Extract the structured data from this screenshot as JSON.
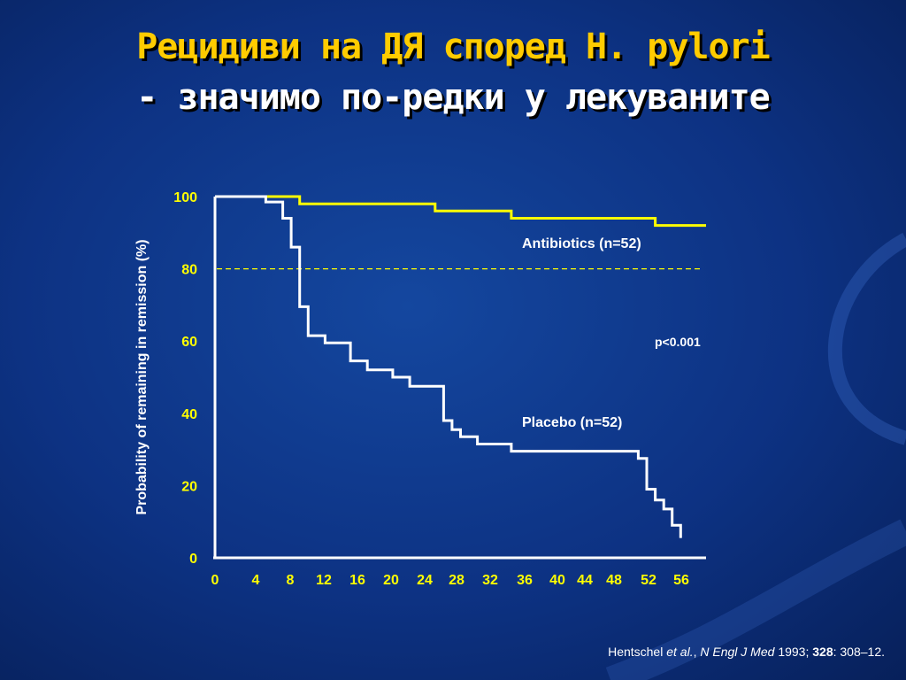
{
  "slide": {
    "title_line1": "Рецидиви на ДЯ според H. pylori",
    "title_line2": "- значимо по-редки у лекуваните"
  },
  "citation": {
    "authors": "Hentschel",
    "etal": "et al.",
    "journal": "N Engl J Med",
    "year": "1993;",
    "volume": "328",
    "pages": ": 308–12."
  },
  "colors": {
    "antibiotics": "#ffff00",
    "placebo": "#ffffff",
    "tick_labels": "#ffff00",
    "reference_line": "#ffff00"
  },
  "chart_data": {
    "type": "line",
    "step": true,
    "ylabel": "Probability of remaining in remission (%)",
    "xlabel": "",
    "xlim": [
      0,
      58
    ],
    "ylim": [
      0,
      100
    ],
    "x_ticks": [
      0,
      4,
      8,
      12,
      16,
      20,
      24,
      28,
      32,
      36,
      40,
      44,
      48,
      52,
      56
    ],
    "y_ticks": [
      0,
      20,
      40,
      60,
      80,
      100
    ],
    "reference_line": {
      "y": 80,
      "style": "dashed"
    },
    "series": [
      {
        "name": "Antibiotics (n=52)",
        "points": [
          [
            0,
            100
          ],
          [
            6,
            100
          ],
          [
            10,
            100
          ],
          [
            10,
            98
          ],
          [
            26,
            98
          ],
          [
            26,
            96
          ],
          [
            35,
            96
          ],
          [
            35,
            94
          ],
          [
            52,
            94
          ],
          [
            52,
            92
          ],
          [
            58,
            92
          ]
        ]
      },
      {
        "name": "Placebo (n=52)",
        "points": [
          [
            0,
            100
          ],
          [
            6,
            100
          ],
          [
            6,
            98.5
          ],
          [
            8,
            98.5
          ],
          [
            8,
            94
          ],
          [
            9,
            94
          ],
          [
            9,
            86
          ],
          [
            10,
            86
          ],
          [
            10,
            69.5
          ],
          [
            11,
            69.5
          ],
          [
            11,
            61.5
          ],
          [
            13,
            61.5
          ],
          [
            13,
            59.5
          ],
          [
            16,
            59.5
          ],
          [
            16,
            54.5
          ],
          [
            18,
            54.5
          ],
          [
            18,
            52
          ],
          [
            21,
            52
          ],
          [
            21,
            50
          ],
          [
            23,
            50
          ],
          [
            23,
            47.5
          ],
          [
            27,
            47.5
          ],
          [
            27,
            38
          ],
          [
            28,
            38
          ],
          [
            28,
            35.5
          ],
          [
            29,
            35.5
          ],
          [
            29,
            33.5
          ],
          [
            31,
            33.5
          ],
          [
            31,
            31.5
          ],
          [
            35,
            31.5
          ],
          [
            35,
            29.5
          ],
          [
            50,
            29.5
          ],
          [
            50,
            27.5
          ],
          [
            51,
            27.5
          ],
          [
            51,
            19
          ],
          [
            52,
            19
          ],
          [
            52,
            16
          ],
          [
            53,
            16
          ],
          [
            53,
            13.5
          ],
          [
            54,
            13.5
          ],
          [
            54,
            9
          ],
          [
            55,
            9
          ],
          [
            55,
            5.5
          ]
        ]
      }
    ],
    "annotations": [
      {
        "text": "p<0.001",
        "x": 52,
        "y": 60
      }
    ]
  }
}
